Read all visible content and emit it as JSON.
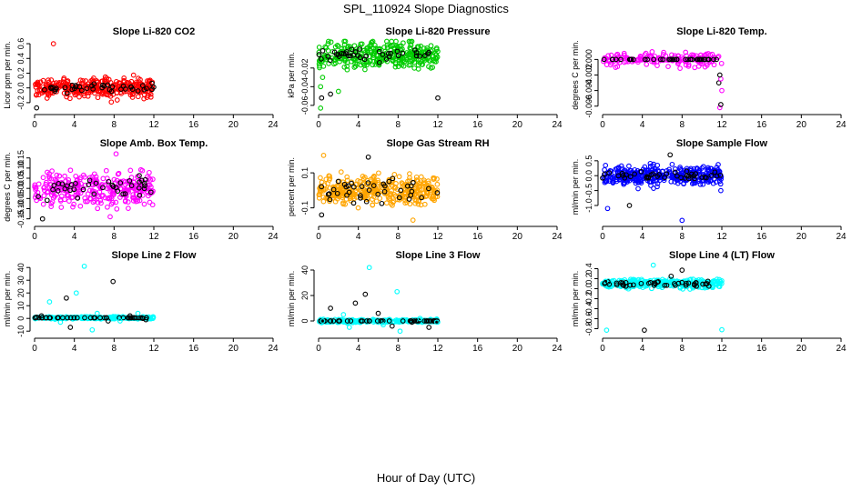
{
  "figure": {
    "title": "SPL_110924  Slope Diagnostics",
    "xlabel": "Hour of Day (UTC)"
  },
  "chart_data": [
    {
      "type": "scatter",
      "title": "Slope Li-820 CO2",
      "ylabel": "Licor ppm per min.",
      "xlim": [
        0,
        24
      ],
      "ylim": [
        -0.3,
        0.65
      ],
      "yticks": [
        -0.2,
        0.0,
        0.2,
        0.4,
        0.6
      ],
      "ytick_labels": [
        "-0.2",
        "0.0",
        "0.2",
        "0.4",
        "0.6"
      ],
      "xticks": [
        0,
        4,
        8,
        12,
        16,
        20,
        24
      ],
      "x_range": [
        0,
        12
      ],
      "center": 0.0,
      "spread": 0.09,
      "ref_spread": 0.05,
      "n": 320,
      "outliers": [
        [
          1.9,
          0.6
        ],
        [
          0.2,
          -0.27
        ],
        [
          0.1,
          0.05
        ]
      ],
      "series": [
        {
          "name": "data",
          "color": "#ff0000"
        },
        {
          "name": "reference",
          "color": "#000000"
        }
      ]
    },
    {
      "type": "scatter",
      "title": "Slope Li-820 Pressure",
      "ylabel": "kPa per min.",
      "xlim": [
        0,
        24
      ],
      "ylim": [
        -0.065,
        0.01
      ],
      "yticks": [
        -0.06,
        -0.04,
        -0.02
      ],
      "ytick_labels": [
        "-0.06",
        "-0.04",
        "-0.02"
      ],
      "xticks": [
        0,
        4,
        8,
        12,
        16,
        20,
        24
      ],
      "x_range": [
        0,
        12
      ],
      "center": -0.006,
      "spread": 0.01,
      "ref_spread": 0.004,
      "n": 320,
      "outliers": [
        [
          0.2,
          -0.063
        ],
        [
          0.3,
          -0.052
        ],
        [
          0.2,
          -0.04
        ],
        [
          1.2,
          -0.048
        ],
        [
          2,
          -0.045
        ],
        [
          12,
          -0.052
        ],
        [
          0.4,
          -0.03
        ]
      ],
      "series": [
        {
          "name": "data",
          "color": "#00cc00"
        },
        {
          "name": "reference",
          "color": "#000000"
        }
      ]
    },
    {
      "type": "scatter",
      "title": "Slope Li-820 Temp.",
      "ylabel": "degrees C per min.",
      "xlim": [
        0,
        24
      ],
      "ylim": [
        -0.0065,
        0.0025
      ],
      "yticks": [
        -0.006,
        -0.004,
        -0.002,
        0.0
      ],
      "ytick_labels": [
        "-0.006",
        "-0.004",
        "-0.002",
        "0.000"
      ],
      "xticks": [
        0,
        4,
        8,
        12,
        16,
        20,
        24
      ],
      "x_range": [
        0,
        12
      ],
      "center": 0.0,
      "spread": 0.0006,
      "ref_spread": 0.0,
      "n": 160,
      "outliers": [
        [
          11.8,
          -0.0062
        ],
        [
          11.9,
          -0.0058
        ],
        [
          12,
          -0.004
        ],
        [
          11.7,
          -0.003
        ],
        [
          11.9,
          -0.0025
        ],
        [
          11.8,
          -0.002
        ]
      ],
      "series": [
        {
          "name": "data",
          "color": "#ff00ff"
        },
        {
          "name": "reference",
          "color": "#000000"
        }
      ]
    },
    {
      "type": "scatter",
      "title": "Slope Amb. Box Temp.",
      "ylabel": "degrees C per min.",
      "xlim": [
        0,
        24
      ],
      "ylim": [
        -0.165,
        0.18
      ],
      "yticks": [
        -0.15,
        -0.1,
        -0.05,
        0.0,
        0.05,
        0.1,
        0.15
      ],
      "ytick_labels": [
        "-0.15",
        "-0.10",
        "-0.05",
        "0.00",
        "0.05",
        "0.10",
        "0.15"
      ],
      "xticks": [
        0,
        4,
        8,
        12,
        16,
        20,
        24
      ],
      "x_range": [
        0,
        12
      ],
      "center": 0.0,
      "spread": 0.06,
      "ref_spread": 0.04,
      "n": 300,
      "outliers": [
        [
          8.2,
          0.17
        ],
        [
          0.8,
          -0.15
        ],
        [
          7.6,
          -0.14
        ]
      ],
      "series": [
        {
          "name": "data",
          "color": "#ff00ff"
        },
        {
          "name": "reference",
          "color": "#000000"
        }
      ]
    },
    {
      "type": "scatter",
      "title": "Slope Gas Stream RH",
      "ylabel": "percent per min.",
      "xlim": [
        0,
        24
      ],
      "ylim": [
        -0.18,
        0.22
      ],
      "yticks": [
        -0.1,
        0.1
      ],
      "ytick_labels": [
        "-0.1",
        "0.1"
      ],
      "xticks": [
        0,
        4,
        8,
        12,
        16,
        20,
        24
      ],
      "x_range": [
        0,
        12
      ],
      "center": 0.0,
      "spread": 0.06,
      "ref_spread": 0.06,
      "n": 360,
      "outliers": [
        [
          0.5,
          0.2
        ],
        [
          5,
          0.19
        ],
        [
          9.5,
          -0.17
        ],
        [
          0.3,
          -0.14
        ]
      ],
      "series": [
        {
          "name": "data",
          "color": "#ffa500"
        },
        {
          "name": "reference",
          "color": "#000000"
        }
      ]
    },
    {
      "type": "scatter",
      "title": "Slope Sample Flow",
      "ylabel": "ml/min per min.",
      "xlim": [
        0,
        24
      ],
      "ylim": [
        -1.55,
        0.8
      ],
      "yticks": [
        -1.0,
        -0.5,
        0.0,
        0.5
      ],
      "ytick_labels": [
        "-1.0",
        "-0.5",
        "0.0",
        "0.5"
      ],
      "xticks": [
        0,
        4,
        8,
        12,
        16,
        20,
        24
      ],
      "x_range": [
        0,
        12
      ],
      "center": 0.0,
      "spread": 0.22,
      "ref_spread": 0.1,
      "n": 360,
      "outliers": [
        [
          8,
          -1.5
        ],
        [
          2.7,
          -1.0
        ],
        [
          0.5,
          -1.1
        ],
        [
          6.8,
          0.7
        ],
        [
          11.9,
          -0.5
        ]
      ],
      "series": [
        {
          "name": "data",
          "color": "#0000ff"
        },
        {
          "name": "reference",
          "color": "#000000"
        }
      ]
    },
    {
      "type": "scatter",
      "title": "Slope Line 2 Flow",
      "ylabel": "ml/min per min.",
      "xlim": [
        0,
        24
      ],
      "ylim": [
        -12,
        43
      ],
      "yticks": [
        -10,
        0,
        10,
        20,
        30,
        40
      ],
      "ytick_labels": [
        "-10",
        "0",
        "10",
        "20",
        "30",
        "40"
      ],
      "xticks": [
        0,
        4,
        8,
        12,
        16,
        20,
        24
      ],
      "x_range": [
        0,
        12
      ],
      "center": 0.5,
      "spread": 0.6,
      "ref_spread": 0,
      "n": 260,
      "outliers": [
        [
          5,
          41
        ],
        [
          7.9,
          29
        ],
        [
          1.5,
          13
        ],
        [
          3.2,
          16
        ],
        [
          4.2,
          20
        ],
        [
          0.7,
          2
        ],
        [
          2.6,
          -3
        ],
        [
          3.6,
          -7
        ],
        [
          5.8,
          -9
        ],
        [
          7.4,
          -2
        ],
        [
          8.6,
          -2
        ],
        [
          9.6,
          2
        ],
        [
          10.4,
          4
        ],
        [
          11.2,
          -1
        ],
        [
          11.9,
          0
        ],
        [
          10.9,
          0
        ],
        [
          6.3,
          4
        ],
        [
          0.2,
          1
        ]
      ],
      "series": [
        {
          "name": "data",
          "color": "#00ffff"
        },
        {
          "name": "reference",
          "color": "#000000"
        }
      ]
    },
    {
      "type": "scatter",
      "title": "Slope Line 3 Flow",
      "ylabel": "ml/min per min.",
      "xlim": [
        0,
        24
      ],
      "ylim": [
        -10,
        45
      ],
      "yticks": [
        0,
        20,
        40
      ],
      "ytick_labels": [
        "0",
        "20",
        "40"
      ],
      "xticks": [
        0,
        4,
        8,
        12,
        16,
        20,
        24
      ],
      "x_range": [
        0,
        12
      ],
      "center": 0.0,
      "spread": 0.8,
      "ref_spread": 0,
      "n": 260,
      "outliers": [
        [
          5.1,
          42
        ],
        [
          4.7,
          21
        ],
        [
          7.9,
          23
        ],
        [
          1.2,
          10
        ],
        [
          2.5,
          5
        ],
        [
          3.7,
          14
        ],
        [
          3.1,
          -5
        ],
        [
          6,
          6
        ],
        [
          6.5,
          -3
        ],
        [
          7.4,
          -4
        ],
        [
          8.2,
          -8
        ],
        [
          9.4,
          -1
        ],
        [
          10.2,
          2
        ],
        [
          11.1,
          -5
        ],
        [
          11.9,
          -1
        ],
        [
          0.2,
          0
        ],
        [
          0.4,
          0
        ]
      ],
      "series": [
        {
          "name": "data",
          "color": "#00ffff"
        },
        {
          "name": "reference",
          "color": "#000000"
        }
      ]
    },
    {
      "type": "scatter",
      "title": "Slope Line 4 (LT) Flow",
      "ylabel": "ml/min per min.",
      "xlim": [
        0,
        24
      ],
      "ylim": [
        -0.9,
        0.5
      ],
      "yticks": [
        -0.8,
        -0.6,
        -0.4,
        -0.2,
        0.0,
        0.2,
        0.4
      ],
      "ytick_labels": [
        "-0.8",
        "-0.6",
        "-0.4",
        "-0.2",
        "0.0",
        "0.2",
        "0.4"
      ],
      "xticks": [
        0,
        4,
        8,
        12,
        16,
        20,
        24
      ],
      "x_range": [
        0,
        12
      ],
      "center": 0.1,
      "spread": 0.06,
      "ref_spread": 0.05,
      "n": 300,
      "outliers": [
        [
          5.1,
          0.47
        ],
        [
          8,
          0.37
        ],
        [
          0.4,
          -0.83
        ],
        [
          4.2,
          -0.83
        ],
        [
          12,
          -0.82
        ],
        [
          6.9,
          0.25
        ],
        [
          0.3,
          0.15
        ],
        [
          0.2,
          0.1
        ]
      ],
      "series": [
        {
          "name": "data",
          "color": "#00ffff"
        },
        {
          "name": "reference",
          "color": "#000000"
        }
      ]
    }
  ]
}
